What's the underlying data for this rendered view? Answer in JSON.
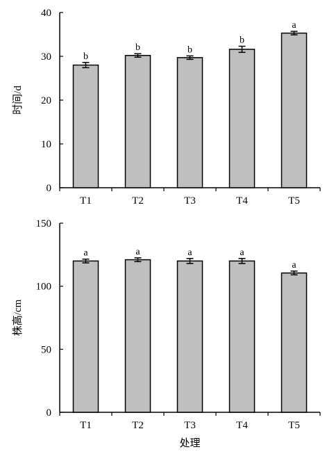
{
  "chart_data": [
    {
      "type": "bar",
      "categories": [
        "T1",
        "T2",
        "T3",
        "T4",
        "T5"
      ],
      "values": [
        28.0,
        30.2,
        29.7,
        31.6,
        35.3
      ],
      "errors": [
        0.6,
        0.4,
        0.4,
        0.7,
        0.4
      ],
      "significance_labels": [
        "b",
        "b",
        "b",
        "b",
        "a"
      ],
      "ylabel": "时间/d",
      "xlabel": "",
      "ylim": [
        0,
        40
      ],
      "yticks": [
        0,
        10,
        20,
        30,
        40
      ],
      "grid": false,
      "bar_color": "#bfbfbf"
    },
    {
      "type": "bar",
      "categories": [
        "T1",
        "T2",
        "T3",
        "T4",
        "T5"
      ],
      "values": [
        120.0,
        121.0,
        120.0,
        120.0,
        110.5
      ],
      "errors": [
        1.5,
        1.5,
        2.0,
        2.0,
        1.5
      ],
      "significance_labels": [
        "a",
        "a",
        "a",
        "a",
        "a"
      ],
      "ylabel": "株高/cm",
      "xlabel": "处理",
      "ylim": [
        0,
        150
      ],
      "yticks": [
        0,
        50,
        100,
        150
      ],
      "grid": false,
      "bar_color": "#bfbfbf"
    }
  ]
}
